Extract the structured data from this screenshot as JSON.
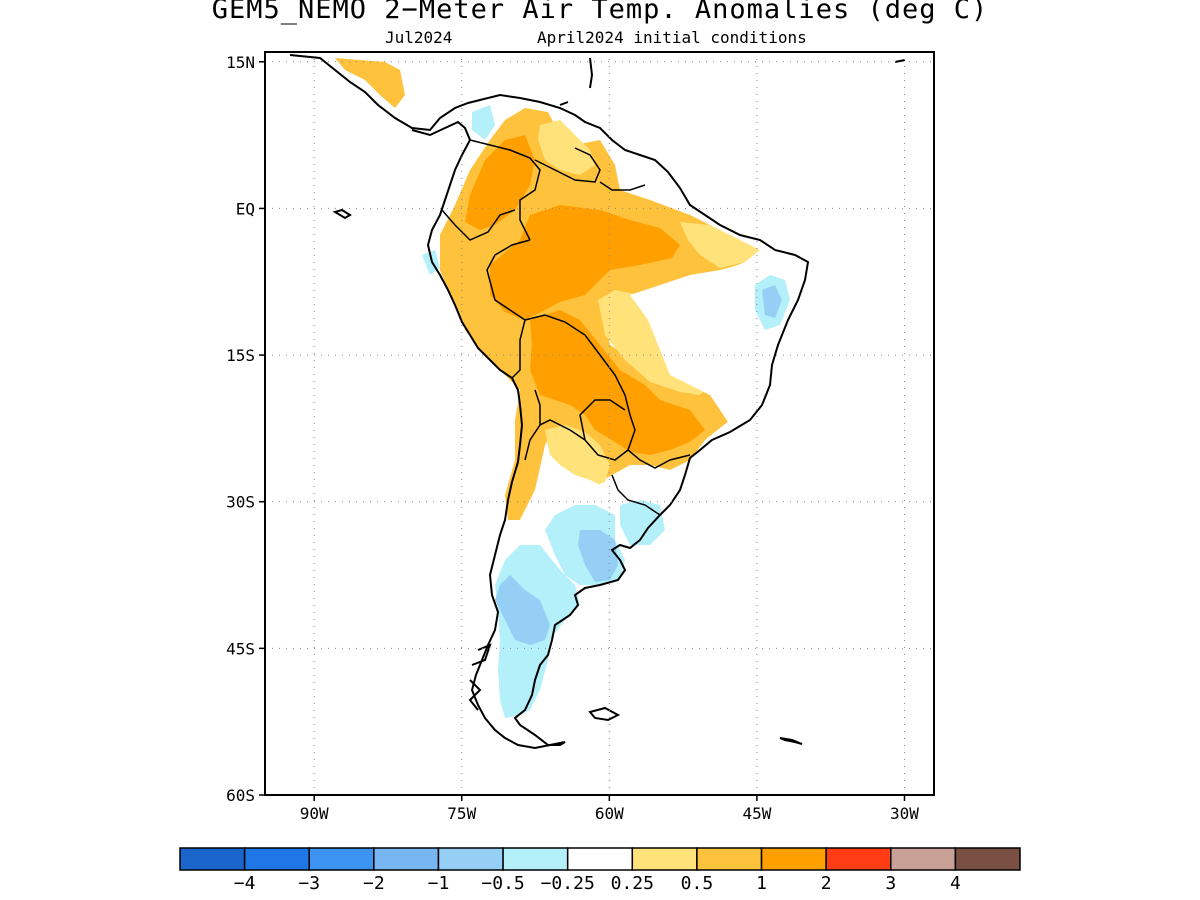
{
  "title": "GEM5_NEMO 2−Meter Air Temp. Anomalies (deg C)",
  "subtitle_left": "Jul2024",
  "subtitle_right": "April2024 initial conditions",
  "map": {
    "lon_range": [
      -95,
      -27
    ],
    "lat_range": [
      -60,
      16
    ],
    "lat_ticks": [
      {
        "value": 15,
        "label": "15N"
      },
      {
        "value": 0,
        "label": "EQ"
      },
      {
        "value": -15,
        "label": "15S"
      },
      {
        "value": -30,
        "label": "30S"
      },
      {
        "value": -45,
        "label": "45S"
      },
      {
        "value": -60,
        "label": "60S"
      }
    ],
    "lon_ticks": [
      {
        "value": -90,
        "label": "90W"
      },
      {
        "value": -75,
        "label": "75W"
      },
      {
        "value": -60,
        "label": "60W"
      },
      {
        "value": -45,
        "label": "45W"
      },
      {
        "value": -30,
        "label": "30W"
      }
    ],
    "grid": true,
    "grid_style": "dotted"
  },
  "colorbar": {
    "colors": [
      "#1a66cc",
      "#1f77e6",
      "#3c93f0",
      "#78b6f2",
      "#95cff5",
      "#b4f0fa",
      "#ffffff",
      "#ffe27a",
      "#ffc23c",
      "#ffa000",
      "#ff3c14",
      "#c8a096",
      "#7a5044"
    ],
    "labels": [
      "−4",
      "−3",
      "−2",
      "−1",
      "−0.5",
      "−0.25",
      "0.25",
      "0.5",
      "1",
      "2",
      "3",
      "4"
    ]
  }
}
